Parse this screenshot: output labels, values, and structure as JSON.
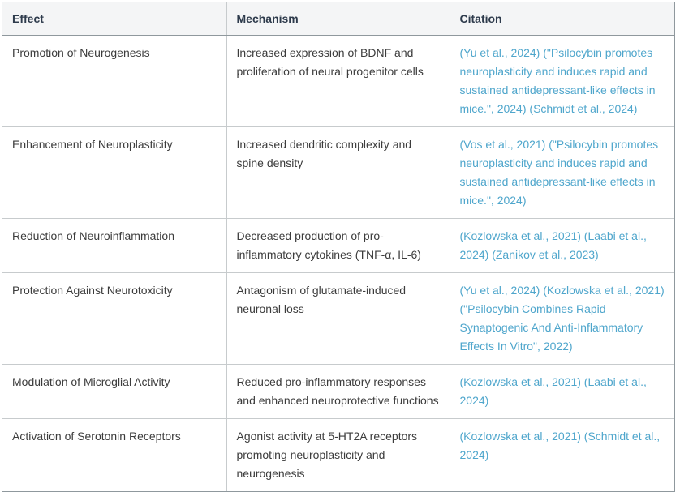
{
  "colors": {
    "link": "#4fa6cc",
    "header_bg": "#f4f5f6",
    "header_text": "#2e3b4c",
    "body_text": "#3c3c3c",
    "outer_border": "#8f989d",
    "inner_border": "#c7cbcd",
    "page_bg": "#ffffff"
  },
  "table": {
    "columns": [
      {
        "id": "effect",
        "label": "Effect"
      },
      {
        "id": "mechanism",
        "label": "Mechanism"
      },
      {
        "id": "citation",
        "label": "Citation"
      }
    ],
    "rows": [
      {
        "effect": "Promotion of Neurogenesis",
        "mechanism": "Increased expression of BDNF and proliferation of neural progenitor cells",
        "citations": [
          "(Yu et al., 2024)",
          "(\"Psilocybin promotes neuroplasticity and induces rapid and sustained antidepressant-like effects in mice.\", 2024)",
          "(Schmidt et al., 2024)"
        ]
      },
      {
        "effect": "Enhancement of Neuroplasticity",
        "mechanism": "Increased dendritic complexity and spine density",
        "citations": [
          "(Vos et al., 2021)",
          "(\"Psilocybin promotes neuroplasticity and induces rapid and sustained antidepressant-like effects in mice.\", 2024)"
        ]
      },
      {
        "effect": "Reduction of Neuroinflammation",
        "mechanism": "Decreased production of pro-inflammatory cytokines (TNF-α, IL-6)",
        "citations": [
          "(Kozlowska et al., 2021)",
          "(Laabi et al., 2024)",
          "(Zanikov et al., 2023)"
        ]
      },
      {
        "effect": "Protection Against Neurotoxicity",
        "mechanism": "Antagonism of glutamate-induced neuronal loss",
        "citations": [
          "(Yu et al., 2024)",
          "(Kozlowska et al., 2021)",
          "(\"Psilocybin Combines Rapid Synaptogenic And Anti-Inflammatory Effects In Vitro\", 2022)"
        ]
      },
      {
        "effect": "Modulation of Microglial Activity",
        "mechanism": "Reduced pro-inflammatory responses and enhanced neuroprotective functions",
        "citations": [
          "(Kozlowska et al., 2021)",
          "(Laabi et al., 2024)"
        ]
      },
      {
        "effect": "Activation of Serotonin Receptors",
        "mechanism": "Agonist activity at 5-HT2A receptors promoting neuroplasticity and neurogenesis",
        "citations": [
          "(Kozlowska et al., 2021)",
          "(Schmidt et al., 2024)"
        ]
      }
    ]
  }
}
